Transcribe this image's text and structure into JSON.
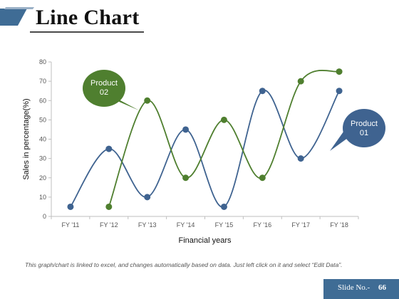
{
  "slide": {
    "title": "Line Chart",
    "footer_note": "This graph/chart is linked to excel, and changes automatically based on data. Just left click on it and select “Edit Data”.",
    "slide_no_label": "Slide No.-",
    "slide_no_value": "66"
  },
  "colors": {
    "product_01": "#3f6390",
    "product_02": "#4f7f2f",
    "accent_bar": "#3f6c95"
  },
  "chart_data": {
    "type": "line",
    "xlabel": "Financial years",
    "ylabel": "Sales in percentage(%)",
    "ylim": [
      0,
      80
    ],
    "yticks": [
      0,
      10,
      20,
      30,
      40,
      50,
      60,
      70,
      80
    ],
    "grid": false,
    "categories": [
      "FY '11",
      "FY '12",
      "FY '13",
      "FY '14",
      "FY '15",
      "FY '16",
      "FY '17",
      "FY '18"
    ],
    "series": [
      {
        "name": "Product 01",
        "label_lines": [
          "Product",
          "01"
        ],
        "color": "#3f6390",
        "values": [
          5,
          35,
          10,
          45,
          5,
          65,
          30,
          65
        ]
      },
      {
        "name": "Product 02",
        "label_lines": [
          "Product",
          "02"
        ],
        "color": "#4f7f2f",
        "values": [
          null,
          5,
          60,
          20,
          50,
          20,
          70,
          75
        ]
      }
    ]
  }
}
